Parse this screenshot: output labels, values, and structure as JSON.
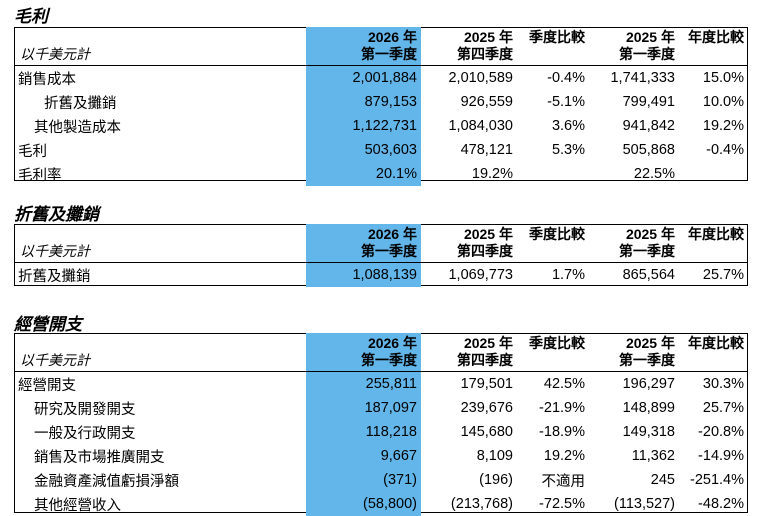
{
  "sections": [
    {
      "title": "毛利",
      "unit": "以千美元計",
      "columns": [
        {
          "line1": "2026 年",
          "line2": "第一季度"
        },
        {
          "line1": "2025 年",
          "line2": "第四季度"
        },
        {
          "line1": "季度比較",
          "line2": ""
        },
        {
          "line1": "2025 年",
          "line2": "第一季度"
        },
        {
          "line1": "年度比較",
          "line2": ""
        }
      ],
      "rows": [
        {
          "label": "銷售成本",
          "values": [
            "2,001,884",
            "2,010,589",
            "-0.4%",
            "1,741,333",
            "15.0%"
          ]
        },
        {
          "label": "折舊及攤銷",
          "values": [
            "879,153",
            "926,559",
            "-5.1%",
            "799,491",
            "10.0%"
          ]
        },
        {
          "label": "其他製造成本",
          "values": [
            "1,122,731",
            "1,084,030",
            "3.6%",
            "941,842",
            "19.2%"
          ]
        },
        {
          "label": "毛利",
          "values": [
            "503,603",
            "478,121",
            "5.3%",
            "505,868",
            "-0.4%"
          ]
        },
        {
          "label": "毛利率",
          "values": [
            "20.1%",
            "19.2%",
            "",
            "22.5%",
            ""
          ]
        }
      ]
    },
    {
      "title": "折舊及攤銷",
      "unit": "以千美元計",
      "columns": [
        {
          "line1": "2026 年",
          "line2": "第一季度"
        },
        {
          "line1": "2025 年",
          "line2": "第四季度"
        },
        {
          "line1": "季度比較",
          "line2": ""
        },
        {
          "line1": "2025 年",
          "line2": "第一季度"
        },
        {
          "line1": "年度比較",
          "line2": ""
        }
      ],
      "rows": [
        {
          "label": "折舊及攤銷",
          "values": [
            "1,088,139",
            "1,069,773",
            "1.7%",
            "865,564",
            "25.7%"
          ]
        }
      ]
    },
    {
      "title": "經營開支",
      "unit": "以千美元計",
      "columns": [
        {
          "line1": "2026 年",
          "line2": "第一季度"
        },
        {
          "line1": "2025 年",
          "line2": "第四季度"
        },
        {
          "line1": "季度比較",
          "line2": ""
        },
        {
          "line1": "2025 年",
          "line2": "第一季度"
        },
        {
          "line1": "年度比較",
          "line2": ""
        }
      ],
      "rows": [
        {
          "label": "經營開支",
          "values": [
            "255,811",
            "179,501",
            "42.5%",
            "196,297",
            "30.3%"
          ]
        },
        {
          "label": "研究及開發開支",
          "values": [
            "187,097",
            "239,676",
            "-21.9%",
            "148,899",
            "25.7%"
          ]
        },
        {
          "label": "一般及行政開支",
          "values": [
            "118,218",
            "145,680",
            "-18.9%",
            "149,318",
            "-20.8%"
          ]
        },
        {
          "label": "銷售及市場推廣開支",
          "values": [
            "9,667",
            "8,109",
            "19.2%",
            "11,362",
            "-14.9%"
          ]
        },
        {
          "label": "金融資產減值虧損淨額",
          "values": [
            "(371)",
            "(196)",
            "不適用",
            "245",
            "-251.4%"
          ]
        },
        {
          "label": "其他經營收入",
          "values": [
            "(58,800)",
            "(213,768)",
            "-72.5%",
            "(113,527)",
            "-48.2%"
          ]
        }
      ]
    }
  ]
}
